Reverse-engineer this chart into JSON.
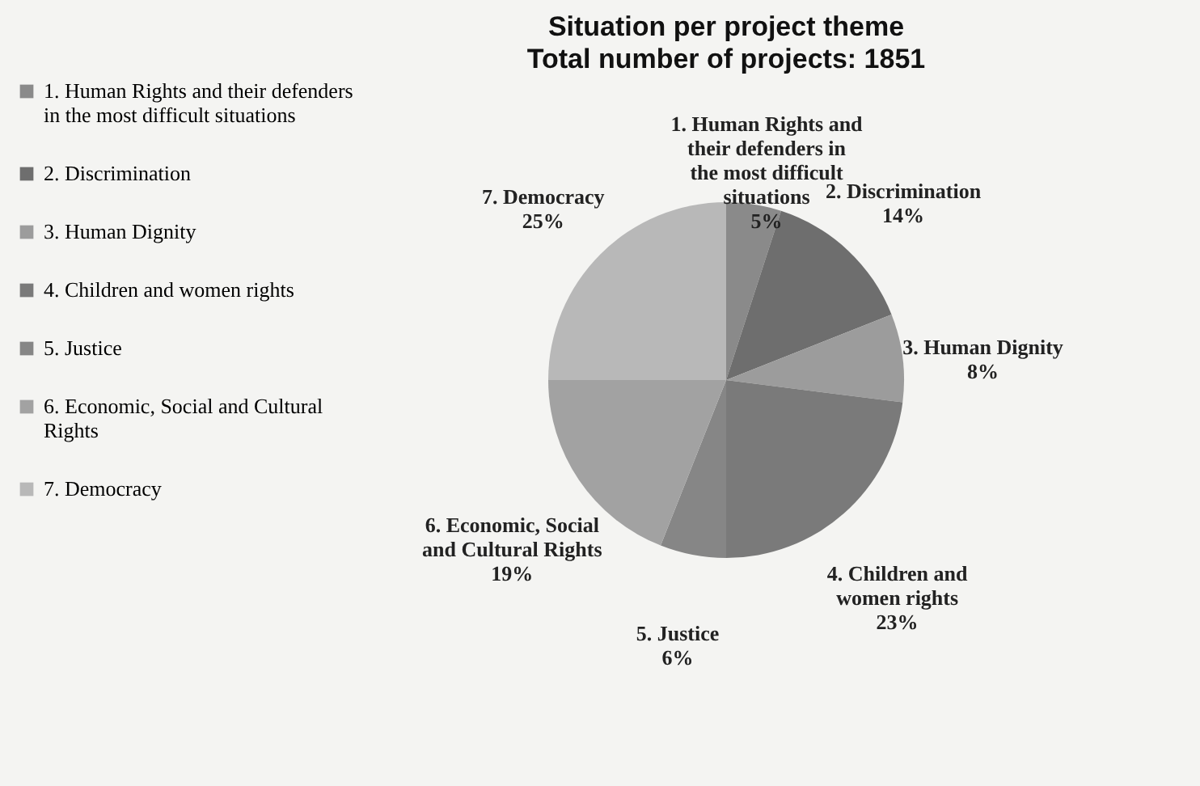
{
  "chart_data": {
    "type": "pie",
    "title": "Situation per project theme",
    "subtitle": "Total number of projects: 1851",
    "categories": [
      "1. Human Rights and their defenders in the most difficult situations",
      "2. Discrimination",
      "3. Human Dignity",
      "4. Children and women rights",
      "5. Justice",
      "6. Economic, Social and Cultural Rights",
      "7. Democracy"
    ],
    "values": [
      5,
      14,
      8,
      23,
      6,
      19,
      25
    ],
    "value_labels": [
      "5%",
      "14%",
      "8%",
      "23%",
      "6%",
      "19%",
      "25%"
    ],
    "colors": [
      "#8a8a8a",
      "#6e6e6e",
      "#9c9c9c",
      "#7a7a7a",
      "#868686",
      "#a2a2a2",
      "#b8b8b8"
    ],
    "legend": "left"
  }
}
